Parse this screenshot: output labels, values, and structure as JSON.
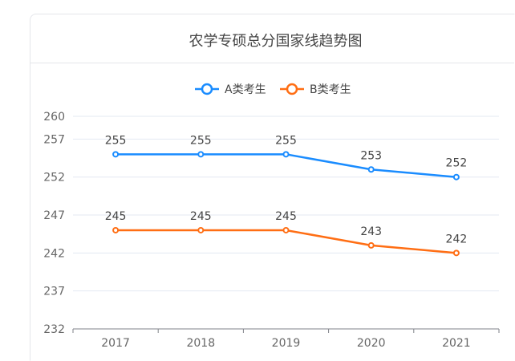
{
  "chart_data": {
    "type": "line",
    "title": "农学专硕总分国家线趋势图",
    "categories": [
      "2017",
      "2018",
      "2019",
      "2020",
      "2021"
    ],
    "series": [
      {
        "name": "A类考生",
        "values": [
          255,
          255,
          255,
          253,
          252
        ],
        "color": "#1a8cff"
      },
      {
        "name": "B类考生",
        "values": [
          245,
          245,
          245,
          243,
          242
        ],
        "color": "#ff6e14"
      }
    ],
    "yticks": [
      232,
      237,
      242,
      247,
      252,
      257,
      260
    ],
    "ylim": [
      232,
      260
    ],
    "grid": true,
    "legend": "top",
    "data_labels": true
  }
}
